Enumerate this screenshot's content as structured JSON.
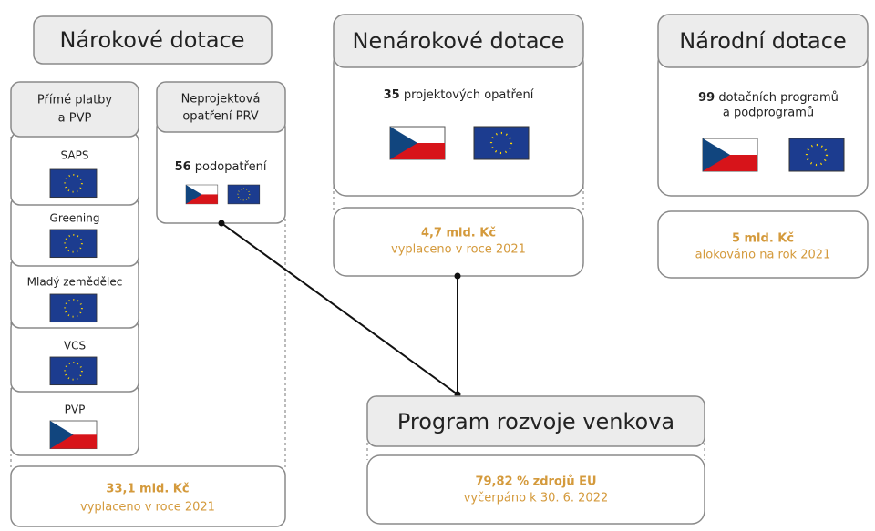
{
  "claim": {
    "title": "Nárokové dotace",
    "direct": {
      "title_lines": [
        "Přímé platby",
        "a PVP"
      ],
      "items": [
        "SAPS",
        "Greening",
        "Mladý zemědělec",
        "VCS",
        "PVP"
      ]
    },
    "nonproject": {
      "title_lines": [
        "Neprojektová",
        "opatření PRV"
      ],
      "count": 56,
      "count_label": "podopatření"
    },
    "amount": "33,1 mld. Kč",
    "amount_note": "vyplaceno v roce 2021"
  },
  "nonclaim": {
    "title": "Nenárokové dotace",
    "count": 35,
    "count_label": "projektových opatření",
    "amount": "4,7 mld. Kč",
    "amount_note": "vyplaceno v roce 2021"
  },
  "national": {
    "title": "Národní dotace",
    "count": 99,
    "count_label_lines": [
      "dotačních programů",
      "a podprogramů"
    ],
    "amount": "5 mld. Kč",
    "amount_note": "alokováno na rok 2021"
  },
  "prv": {
    "title": "Program rozvoje venkova",
    "amount": "79,82 % zdrojů EU",
    "amount_note": "vyčerpáno k 30. 6. 2022"
  }
}
